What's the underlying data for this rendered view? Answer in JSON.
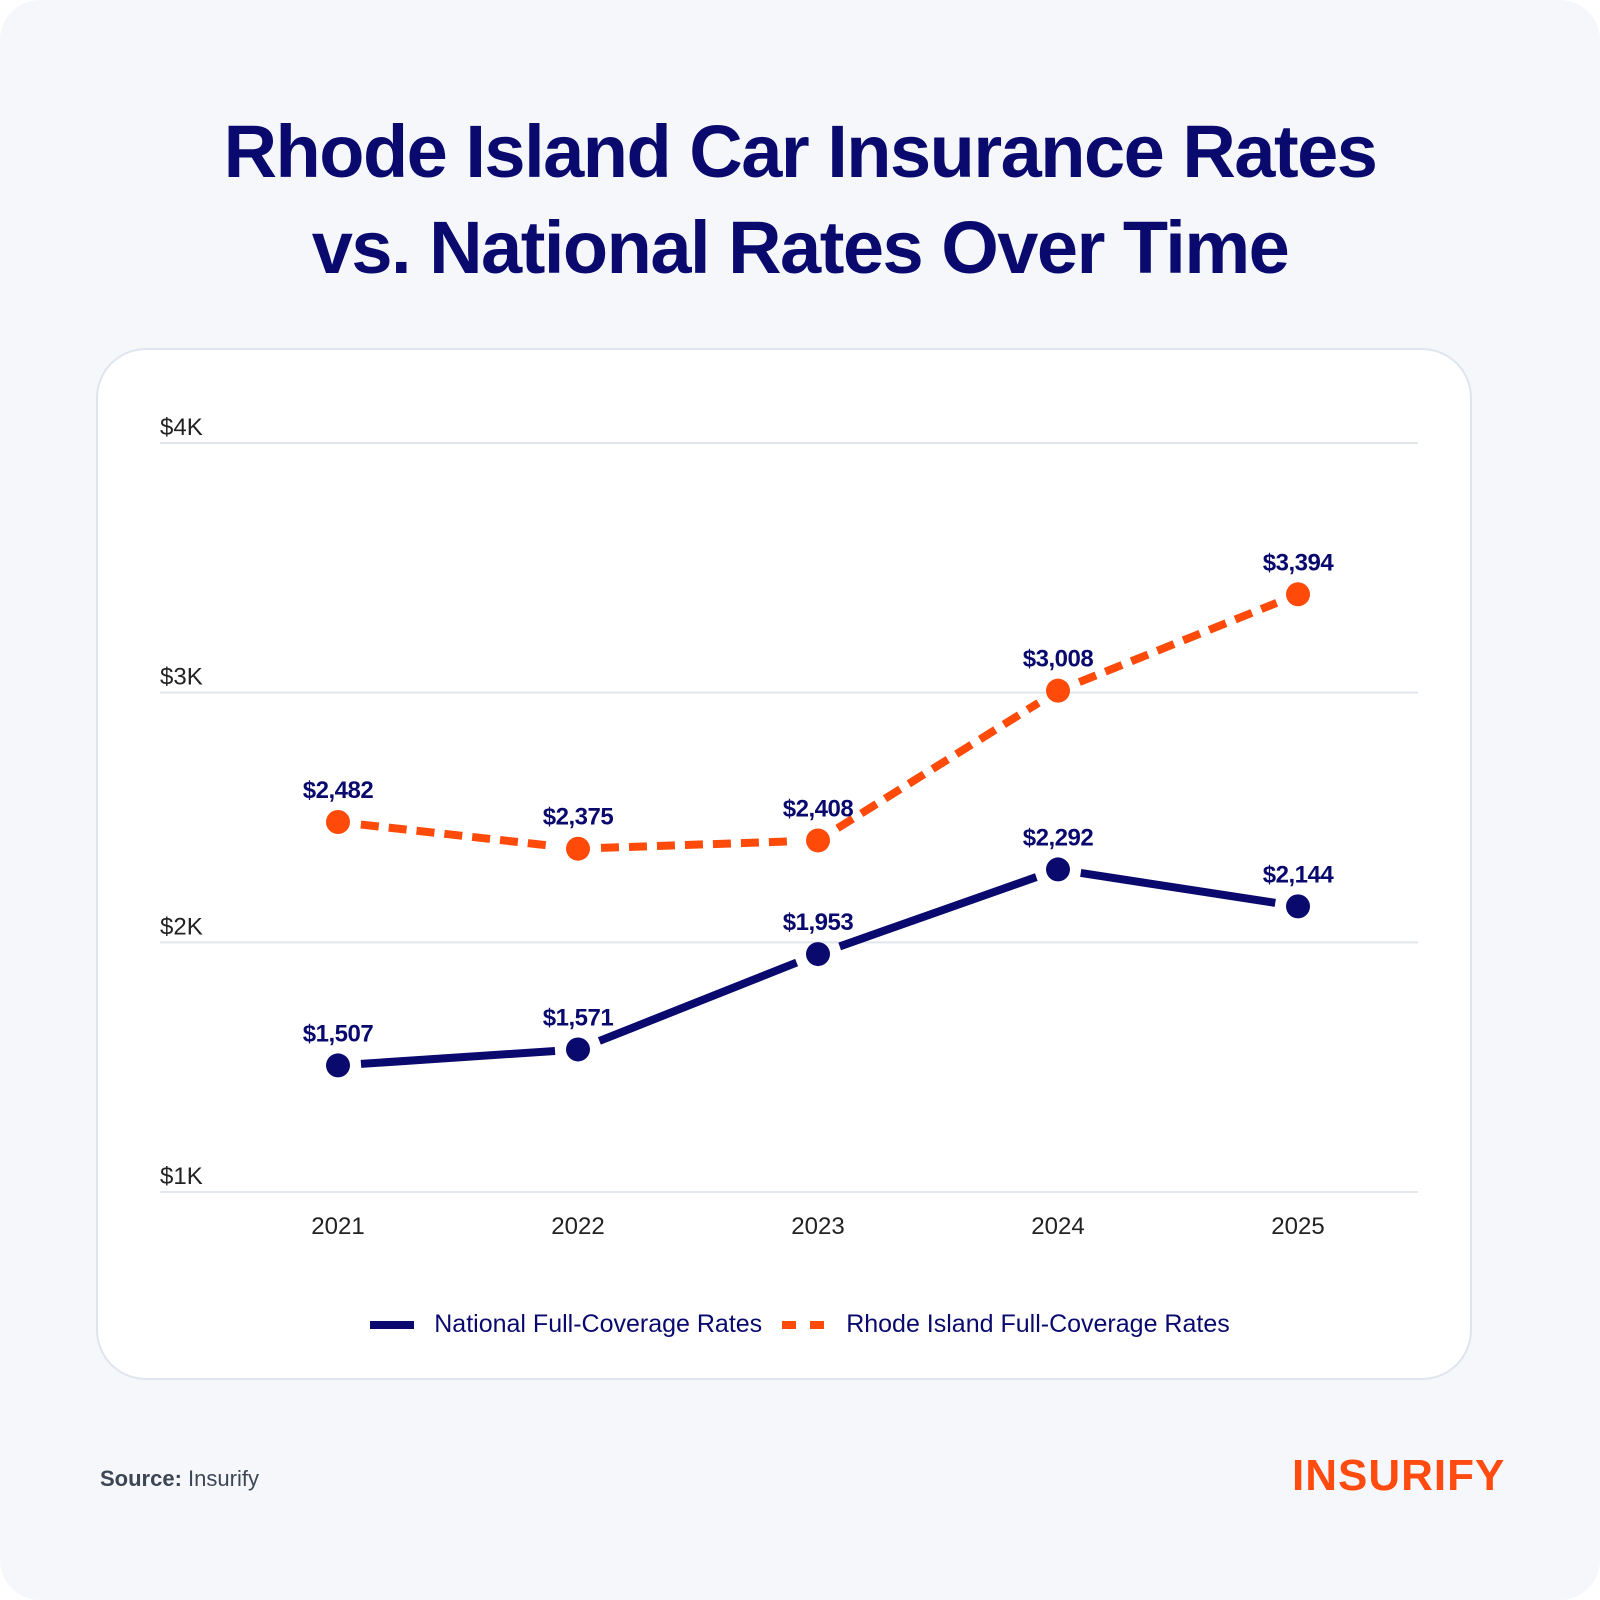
{
  "title_lines": [
    "Rhode Island Car Insurance Rates",
    "vs. National Rates Over Time"
  ],
  "colors": {
    "national": "#0a0a6e",
    "rhode_island": "#ff4a0a",
    "grid": "#e1e5ec",
    "brand": "#ff4a10"
  },
  "chart_data": {
    "type": "line",
    "title": "Rhode Island Car Insurance Rates vs. National Rates Over Time",
    "xlabel": "",
    "ylabel": "",
    "categories": [
      "2021",
      "2022",
      "2023",
      "2024",
      "2025"
    ],
    "y_ticks": [
      {
        "value": 1000,
        "label": "$1K"
      },
      {
        "value": 2000,
        "label": "$2K"
      },
      {
        "value": 3000,
        "label": "$3K"
      },
      {
        "value": 4000,
        "label": "$4K"
      }
    ],
    "ylim": [
      1000,
      4000
    ],
    "grid": true,
    "legend_position": "bottom-center",
    "series": [
      {
        "name": "National Full-Coverage Rates",
        "style": "solid",
        "values": [
          1507,
          1571,
          1953,
          2292,
          2144
        ],
        "labels": [
          "$1,507",
          "$1,571",
          "$1,953",
          "$2,292",
          "$2,144"
        ]
      },
      {
        "name": "Rhode Island Full-Coverage Rates",
        "style": "dashed",
        "values": [
          2482,
          2375,
          2408,
          3008,
          3394
        ],
        "labels": [
          "$2,482",
          "$2,375",
          "$2,408",
          "$3,008",
          "$3,394"
        ]
      }
    ]
  },
  "legend": [
    {
      "label": "National Full-Coverage Rates"
    },
    {
      "label": "Rhode Island Full-Coverage Rates"
    }
  ],
  "footer": {
    "source_label": "Source:",
    "source_value": " Insurify",
    "logo_text": "INSURIFY"
  }
}
